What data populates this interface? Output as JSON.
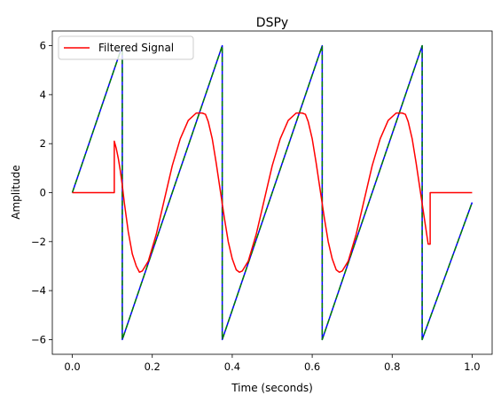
{
  "chart_data": {
    "type": "line",
    "title": "DSPy",
    "xlabel": "Time (seconds)",
    "ylabel": "Amplitude",
    "xlim": [
      -0.05,
      1.05
    ],
    "ylim": [
      -6.6,
      6.6
    ],
    "xticks": [
      0.0,
      0.2,
      0.4,
      0.6,
      0.8,
      1.0
    ],
    "xtick_labels": [
      "0.0",
      "0.2",
      "0.4",
      "0.6",
      "0.8",
      "1.0"
    ],
    "yticks": [
      -6,
      -4,
      -2,
      0,
      2,
      4,
      6
    ],
    "ytick_labels": [
      "−6",
      "−4",
      "−2",
      "0",
      "2",
      "4",
      "6"
    ],
    "grid": false,
    "legend": {
      "placement": "top-left",
      "entries": [
        "Filtered Signal"
      ]
    },
    "series": [
      {
        "color": "#0000ff",
        "style": "solid",
        "x": [
          0.0,
          0.125,
          0.125,
          0.375,
          0.375,
          0.625,
          0.625,
          0.875,
          0.875,
          1.0
        ],
        "y": [
          0.0,
          6.0,
          -6.0,
          6.0,
          -6.0,
          6.0,
          -6.0,
          6.0,
          -6.0,
          -0.4
        ]
      },
      {
        "color": "#008000",
        "style": "dashed",
        "x": [
          0.0,
          0.125,
          0.125,
          0.375,
          0.375,
          0.625,
          0.625,
          0.875,
          0.875,
          1.0
        ],
        "y": [
          0.0,
          6.0,
          -6.0,
          6.0,
          -6.0,
          6.0,
          -6.0,
          6.0,
          -6.0,
          -0.4
        ]
      },
      {
        "name": "Filtered Signal",
        "color": "#ff0000",
        "style": "solid",
        "x": [
          0.0,
          0.105,
          0.105,
          0.11,
          0.115,
          0.12,
          0.125,
          0.13,
          0.14,
          0.15,
          0.16,
          0.168,
          0.175,
          0.19,
          0.21,
          0.23,
          0.25,
          0.27,
          0.29,
          0.31,
          0.325,
          0.333,
          0.34,
          0.35,
          0.36,
          0.37,
          0.38,
          0.39,
          0.4,
          0.41,
          0.418,
          0.425,
          0.44,
          0.46,
          0.48,
          0.5,
          0.52,
          0.54,
          0.56,
          0.575,
          0.583,
          0.59,
          0.6,
          0.61,
          0.62,
          0.63,
          0.64,
          0.65,
          0.66,
          0.668,
          0.675,
          0.69,
          0.71,
          0.73,
          0.75,
          0.77,
          0.79,
          0.81,
          0.825,
          0.833,
          0.84,
          0.85,
          0.86,
          0.87,
          0.88,
          0.89,
          0.895,
          0.895,
          1.0
        ],
        "y": [
          0.0,
          0.0,
          2.1,
          1.8,
          1.4,
          0.9,
          0.3,
          -0.4,
          -1.6,
          -2.5,
          -3.0,
          -3.25,
          -3.2,
          -2.8,
          -1.7,
          -0.3,
          1.1,
          2.2,
          2.95,
          3.25,
          3.25,
          3.2,
          2.9,
          2.2,
          1.2,
          0.1,
          -1.0,
          -2.0,
          -2.7,
          -3.15,
          -3.25,
          -3.2,
          -2.8,
          -1.7,
          -0.3,
          1.1,
          2.2,
          2.95,
          3.25,
          3.25,
          3.2,
          2.9,
          2.2,
          1.2,
          0.1,
          -1.0,
          -2.0,
          -2.7,
          -3.15,
          -3.25,
          -3.2,
          -2.8,
          -1.7,
          -0.3,
          1.1,
          2.2,
          2.95,
          3.25,
          3.25,
          3.2,
          2.9,
          2.2,
          1.2,
          0.1,
          -1.0,
          -2.1,
          -2.1,
          0.0,
          0.0
        ]
      }
    ]
  }
}
